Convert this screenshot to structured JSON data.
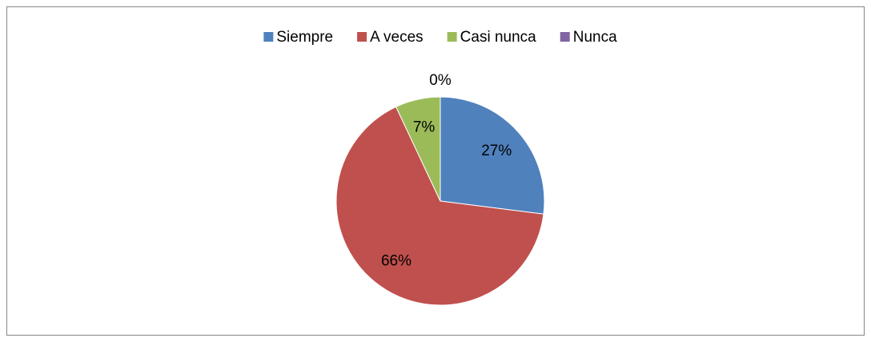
{
  "chart_data": {
    "type": "pie",
    "categories": [
      "Siempre",
      "A veces",
      "Casi nunca",
      "Nunca"
    ],
    "values": [
      27,
      66,
      7,
      0
    ],
    "value_labels": [
      "27%",
      "66%",
      "7%",
      "0%"
    ],
    "colors": [
      "#4f81bd",
      "#c0504d",
      "#9bbb59",
      "#8064a2"
    ],
    "legend": "top"
  }
}
